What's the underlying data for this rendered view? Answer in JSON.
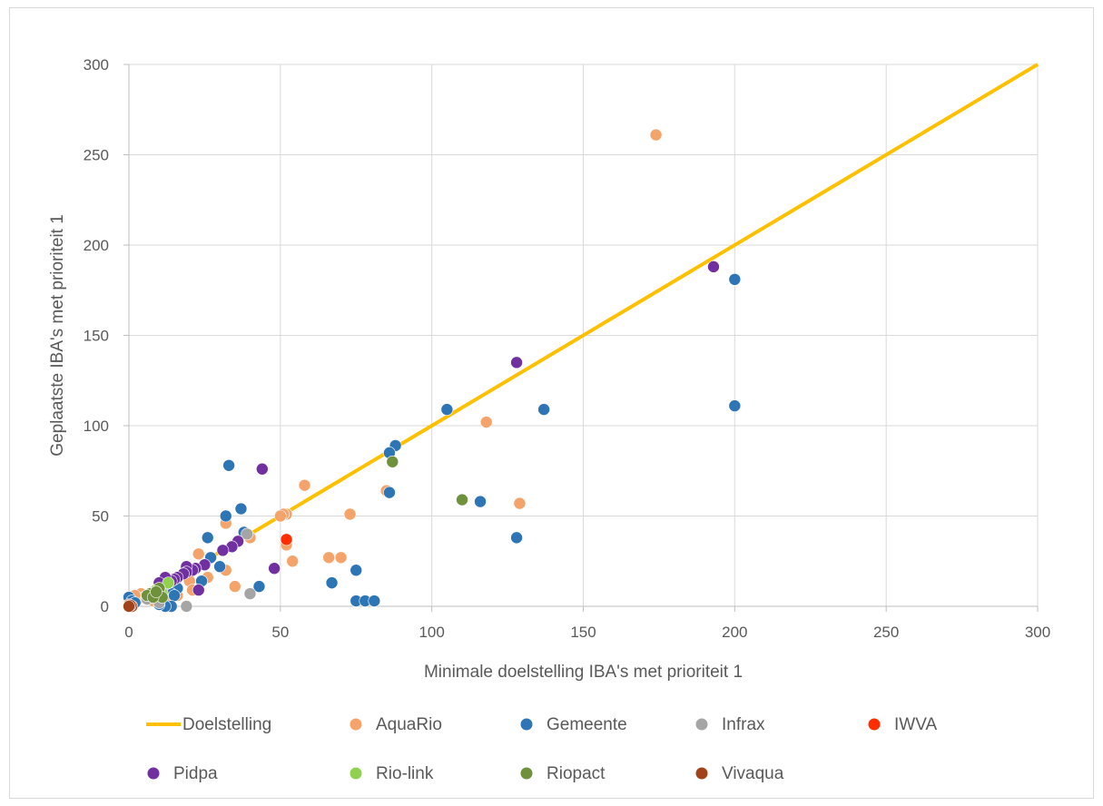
{
  "chart_data": {
    "type": "scatter",
    "xlabel": "Minimale doelstelling IBA's met prioriteit 1",
    "ylabel": "Geplaatste  IBA's met prioriteit 1",
    "xlim": [
      0,
      300
    ],
    "ylim": [
      0,
      300
    ],
    "xticks": [
      "0",
      "50",
      "100",
      "150",
      "200",
      "250",
      "300"
    ],
    "yticks": [
      "0",
      "50",
      "100",
      "150",
      "200",
      "250",
      "300"
    ],
    "grid": true,
    "legend_position": "bottom",
    "target_line": {
      "name": "Doelstelling",
      "color": "#ffc000",
      "points": [
        [
          0,
          0
        ],
        [
          300,
          300
        ]
      ]
    },
    "series": [
      {
        "name": "AquaRio",
        "color": "#f4a46a",
        "points": [
          [
            174,
            261
          ],
          [
            118,
            102
          ],
          [
            129,
            57
          ],
          [
            85,
            64
          ],
          [
            58,
            67
          ],
          [
            52,
            51
          ],
          [
            51,
            51
          ],
          [
            50,
            50
          ],
          [
            52,
            34
          ],
          [
            54,
            25
          ],
          [
            73,
            51
          ],
          [
            70,
            27
          ],
          [
            66,
            27
          ],
          [
            40,
            38
          ],
          [
            32,
            46
          ],
          [
            32,
            20
          ],
          [
            35,
            11
          ],
          [
            26,
            16
          ],
          [
            24,
            14
          ],
          [
            23,
            29
          ],
          [
            20,
            14
          ],
          [
            21,
            9
          ],
          [
            15,
            9
          ],
          [
            16,
            6
          ],
          [
            12,
            5
          ],
          [
            4,
            7
          ],
          [
            5,
            5
          ],
          [
            3,
            4
          ],
          [
            2,
            6
          ],
          [
            6,
            5
          ],
          [
            8,
            3
          ],
          [
            10,
            2
          ]
        ]
      },
      {
        "name": "Gemeente",
        "color": "#2e75b6",
        "points": [
          [
            200,
            181
          ],
          [
            200,
            111
          ],
          [
            137,
            109
          ],
          [
            105,
            109
          ],
          [
            88,
            89
          ],
          [
            86,
            85
          ],
          [
            86,
            63
          ],
          [
            116,
            58
          ],
          [
            128,
            38
          ],
          [
            33,
            78
          ],
          [
            37,
            54
          ],
          [
            32,
            50
          ],
          [
            38,
            41
          ],
          [
            26,
            38
          ],
          [
            27,
            27
          ],
          [
            30,
            22
          ],
          [
            24,
            14
          ],
          [
            43,
            11
          ],
          [
            67,
            13
          ],
          [
            75,
            20
          ],
          [
            75,
            3
          ],
          [
            78,
            3
          ],
          [
            81,
            3
          ],
          [
            16,
            10
          ],
          [
            14,
            7
          ],
          [
            15,
            6
          ],
          [
            14,
            0
          ],
          [
            12,
            0
          ],
          [
            10,
            1
          ],
          [
            0,
            5
          ],
          [
            1,
            3
          ],
          [
            2,
            2
          ]
        ]
      },
      {
        "name": "Infrax",
        "color": "#a5a5a5",
        "points": [
          [
            39,
            40
          ],
          [
            40,
            7
          ],
          [
            19,
            0
          ],
          [
            10,
            2
          ],
          [
            11,
            6
          ],
          [
            6,
            4
          ]
        ]
      },
      {
        "name": "IWVA",
        "color": "#ff2d00",
        "points": [
          [
            52,
            37
          ]
        ]
      },
      {
        "name": "Pidpa",
        "color": "#7030a0",
        "points": [
          [
            193,
            188
          ],
          [
            128,
            135
          ],
          [
            44,
            76
          ],
          [
            36,
            36
          ],
          [
            34,
            33
          ],
          [
            31,
            31
          ],
          [
            25,
            23
          ],
          [
            22,
            21
          ],
          [
            21,
            20
          ],
          [
            19,
            22
          ],
          [
            19,
            19
          ],
          [
            18,
            18
          ],
          [
            16,
            16
          ],
          [
            15,
            15
          ],
          [
            14,
            14
          ],
          [
            13,
            13
          ],
          [
            12,
            16
          ],
          [
            12,
            12
          ],
          [
            11,
            11
          ],
          [
            10,
            13
          ],
          [
            9,
            9
          ],
          [
            48,
            21
          ],
          [
            23,
            9
          ],
          [
            8,
            8
          ],
          [
            7,
            7
          ]
        ]
      },
      {
        "name": "Rio-link",
        "color": "#92d050",
        "points": [
          [
            13,
            13
          ],
          [
            8,
            8
          ],
          [
            9,
            9
          ],
          [
            11,
            7
          ],
          [
            6,
            6
          ]
        ]
      },
      {
        "name": "Riopact",
        "color": "#70913c",
        "points": [
          [
            87,
            80
          ],
          [
            110,
            59
          ],
          [
            10,
            10
          ],
          [
            11,
            5
          ],
          [
            7,
            7
          ],
          [
            6,
            6
          ],
          [
            8,
            5
          ],
          [
            9,
            8
          ]
        ]
      },
      {
        "name": "Vivaqua",
        "color": "#a0431b",
        "points": [
          [
            0,
            0
          ],
          [
            0,
            1
          ],
          [
            1,
            0
          ],
          [
            0,
            0.5
          ],
          [
            0.5,
            0.5
          ],
          [
            0,
            0
          ]
        ]
      }
    ]
  }
}
